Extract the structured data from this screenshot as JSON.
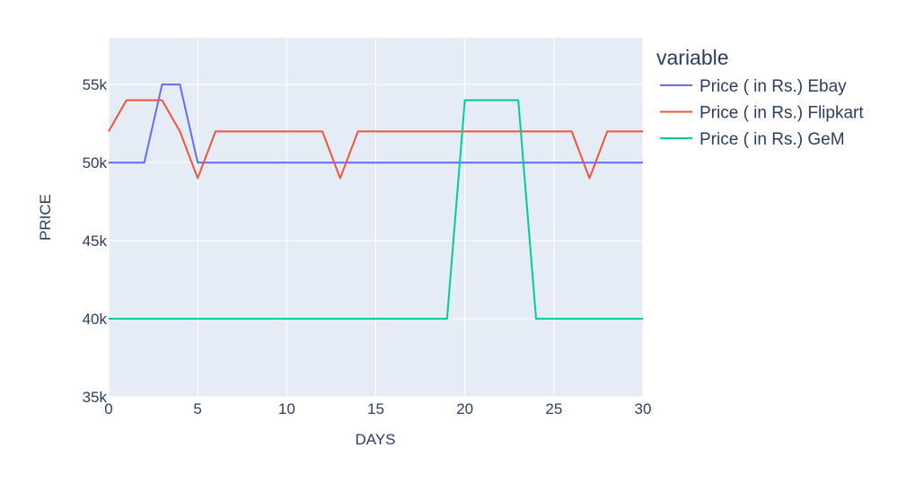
{
  "chart_data": {
    "type": "line",
    "xlabel": "DAYS",
    "ylabel": "PRICE",
    "xlim": [
      0,
      30
    ],
    "ylim": [
      35000,
      58000
    ],
    "x_ticks": [
      {
        "value": 0,
        "label": "0"
      },
      {
        "value": 5,
        "label": "5"
      },
      {
        "value": 10,
        "label": "10"
      },
      {
        "value": 15,
        "label": "15"
      },
      {
        "value": 20,
        "label": "20"
      },
      {
        "value": 25,
        "label": "25"
      },
      {
        "value": 30,
        "label": "30"
      }
    ],
    "y_ticks": [
      {
        "value": 35000,
        "label": "35k"
      },
      {
        "value": 40000,
        "label": "40k"
      },
      {
        "value": 45000,
        "label": "45k"
      },
      {
        "value": 50000,
        "label": "50k"
      },
      {
        "value": 55000,
        "label": "55k"
      }
    ],
    "grid": true,
    "plot_background": "#e5ecf6",
    "grid_color": "#ffffff",
    "legend": {
      "title": "variable",
      "position": "top-right outside"
    },
    "x": [
      0,
      1,
      2,
      3,
      4,
      5,
      6,
      7,
      8,
      9,
      10,
      11,
      12,
      13,
      14,
      15,
      16,
      17,
      18,
      19,
      20,
      21,
      22,
      23,
      24,
      25,
      26,
      27,
      28,
      29,
      30
    ],
    "series": [
      {
        "name": "Price ( in Rs.) Ebay",
        "color": "#636efa",
        "values": [
          50000,
          50000,
          50000,
          55000,
          55000,
          50000,
          50000,
          50000,
          50000,
          50000,
          50000,
          50000,
          50000,
          50000,
          50000,
          50000,
          50000,
          50000,
          50000,
          50000,
          50000,
          50000,
          50000,
          50000,
          50000,
          50000,
          50000,
          50000,
          50000,
          50000,
          50000
        ]
      },
      {
        "name": "Price ( in Rs.) Flipkart",
        "color": "#ef553b",
        "values": [
          52000,
          54000,
          54000,
          54000,
          52000,
          49000,
          52000,
          52000,
          52000,
          52000,
          52000,
          52000,
          52000,
          49000,
          52000,
          52000,
          52000,
          52000,
          52000,
          52000,
          52000,
          52000,
          52000,
          52000,
          52000,
          52000,
          52000,
          49000,
          52000,
          52000,
          52000
        ]
      },
      {
        "name": "Price ( in Rs.) GeM",
        "color": "#00cc96",
        "values": [
          40000,
          40000,
          40000,
          40000,
          40000,
          40000,
          40000,
          40000,
          40000,
          40000,
          40000,
          40000,
          40000,
          40000,
          40000,
          40000,
          40000,
          40000,
          40000,
          40000,
          54000,
          54000,
          54000,
          54000,
          40000,
          40000,
          40000,
          40000,
          40000,
          40000,
          40000
        ]
      }
    ]
  }
}
